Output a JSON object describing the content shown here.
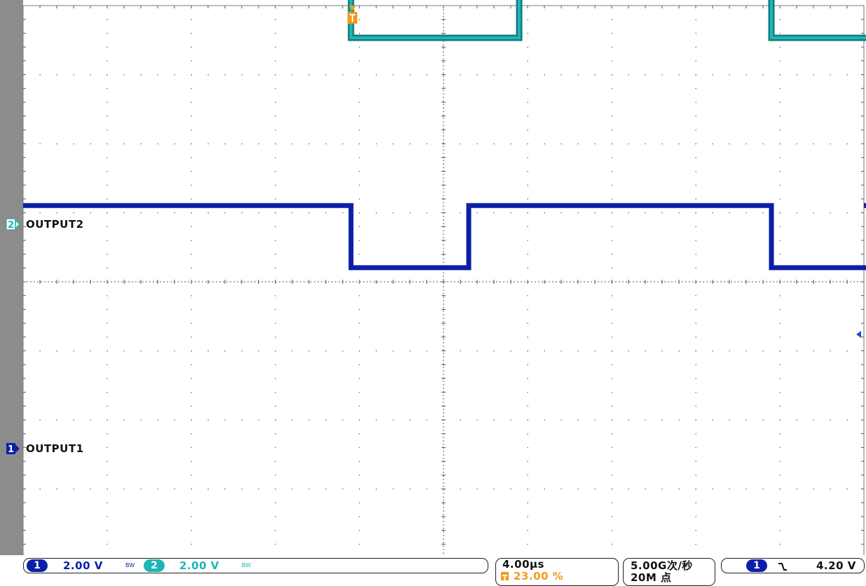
{
  "scope": {
    "colors": {
      "ch1": "#0b1fa8",
      "ch2": "#1fb5b5",
      "ch2_dark": "#137a7a",
      "trigger": "#f39a1b",
      "grid": "#555555",
      "frame": "#7a7a7a"
    },
    "grid": {
      "divisions_x": 10,
      "divisions_y": 8,
      "minor_per_division": 5
    },
    "channel2": {
      "label": "OUTPUT2",
      "marker": "2",
      "level_high_div": 3.5,
      "level_low_div": 2.7,
      "transitions_div": [
        -1.1,
        0.9,
        3.9,
        5.9
      ],
      "start_state": "high"
    },
    "channel1": {
      "label": "OUTPUT1",
      "marker": "1",
      "level_high_div": 3.5,
      "level_low_div": 2.6,
      "transitions_div": [
        -1.1,
        0.3,
        3.9,
        5.3
      ],
      "start_state": "high"
    }
  },
  "status": {
    "ch1": {
      "num": "1",
      "scale": "2.00 V",
      "bw": "BW"
    },
    "ch2": {
      "num": "2",
      "scale": "2.00 V",
      "bw": "BW"
    },
    "timebase": "4.00µs",
    "trigger_position": "23.00 %",
    "sample_rate": "5.00G次/秒",
    "record_length": "20M 点",
    "trigger": {
      "source": "1",
      "slope": "falling-edge-icon",
      "level": "4.20 V"
    }
  }
}
